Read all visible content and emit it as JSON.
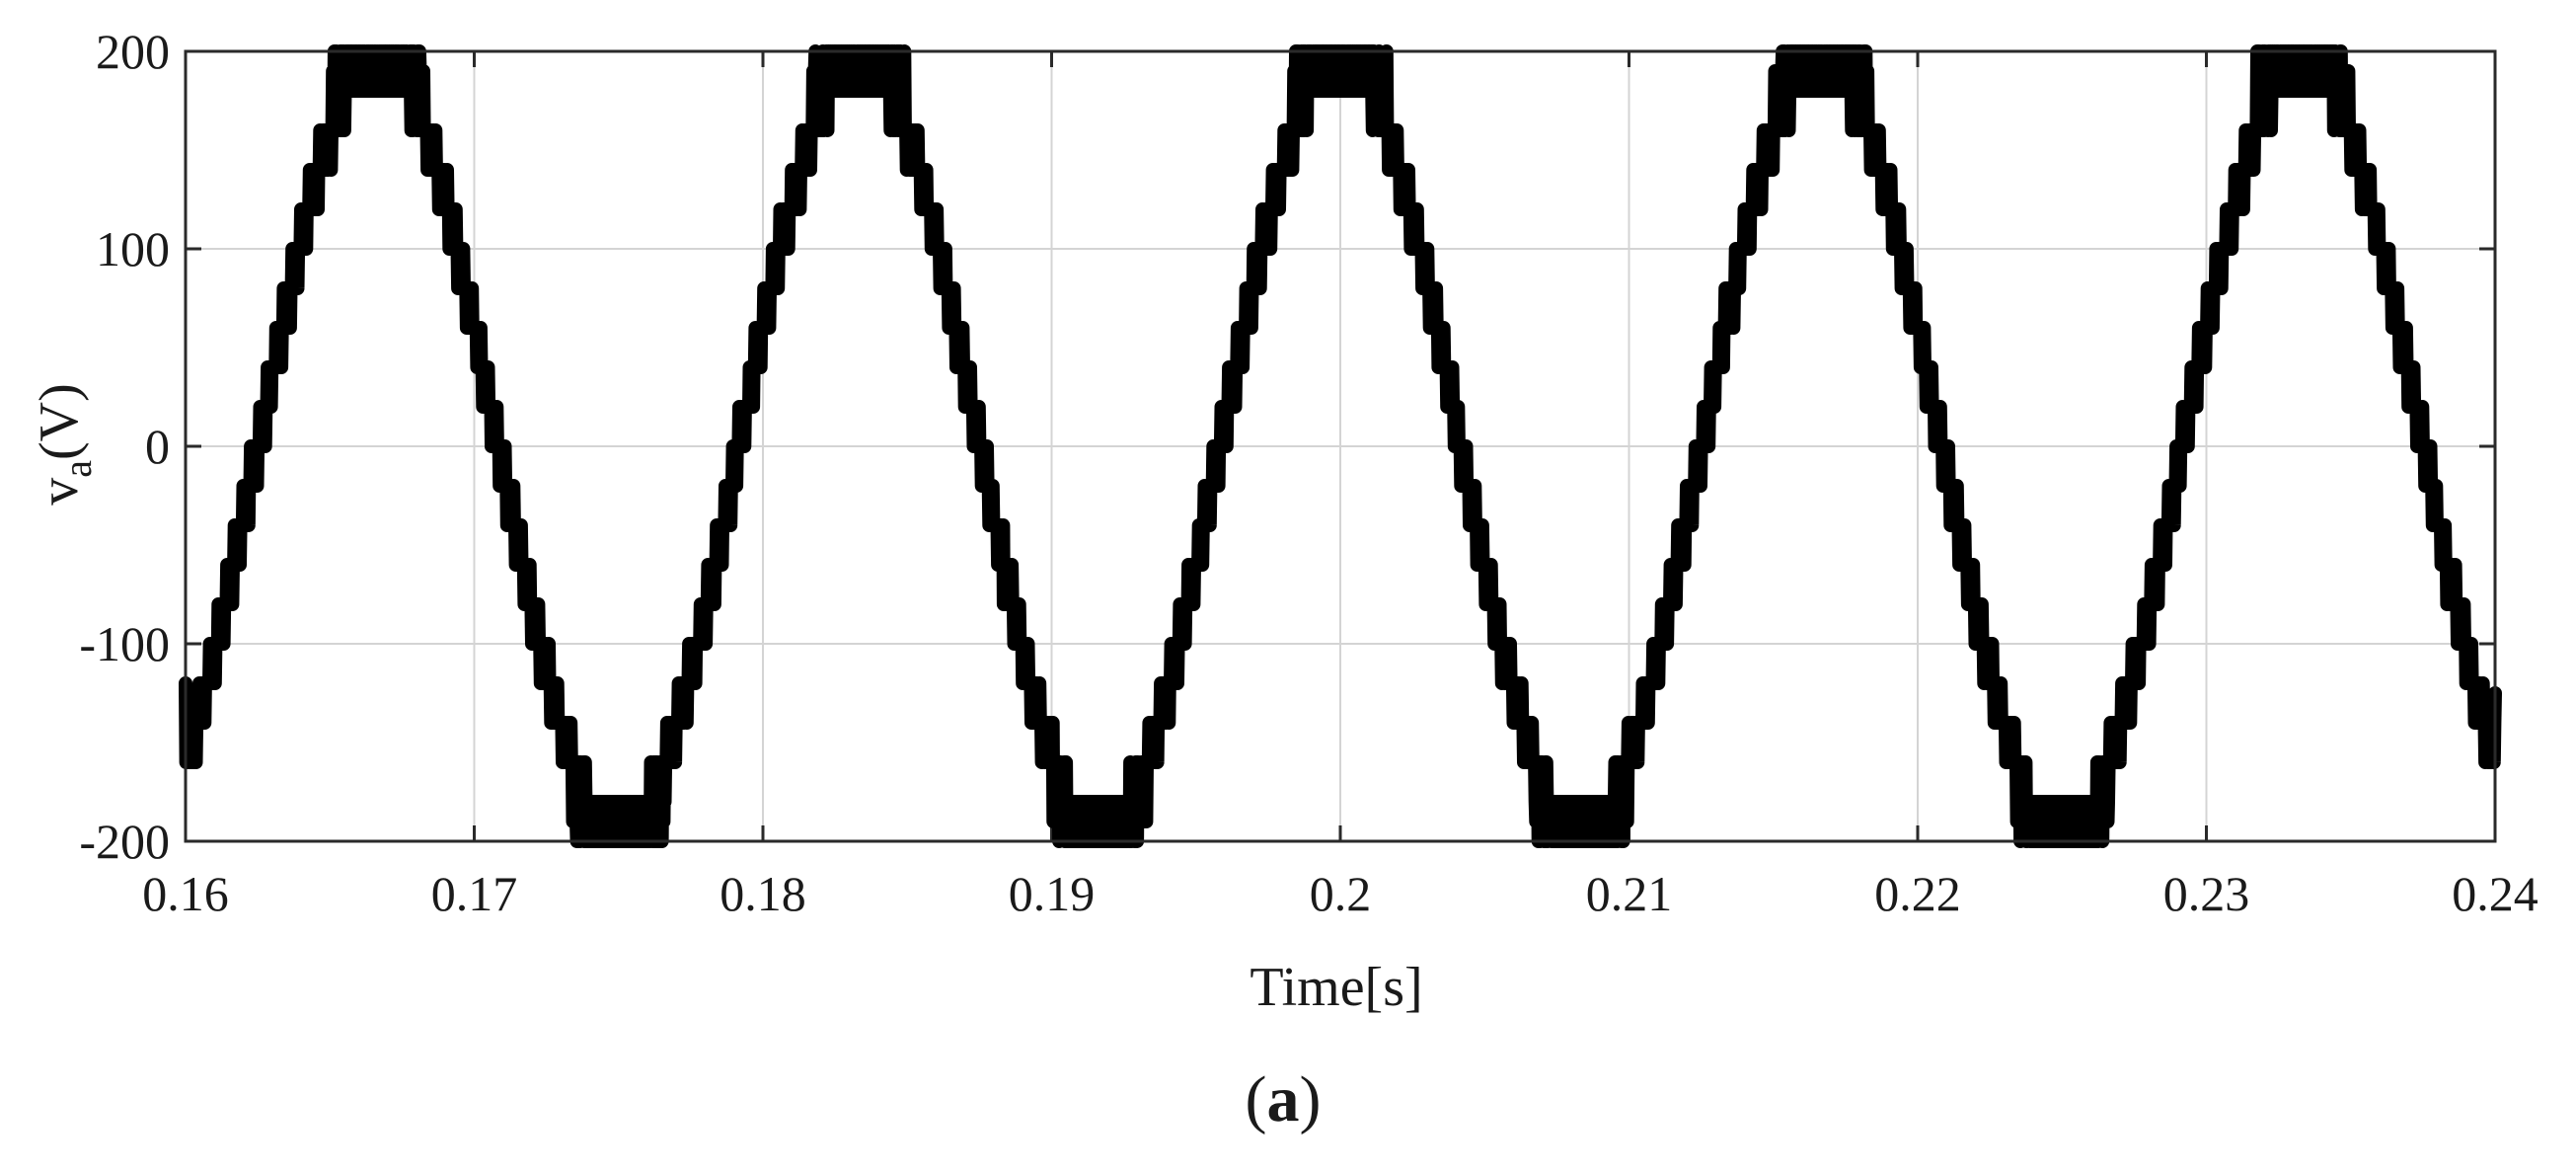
{
  "chart_data": {
    "type": "line",
    "title": "",
    "xlabel": "Time[s]",
    "ylabel": {
      "main": "v",
      "subscript": "a",
      "unit": "(V)"
    },
    "xlim": [
      0.16,
      0.24
    ],
    "ylim": [
      -200,
      200
    ],
    "x_ticks": [
      0.16,
      0.17,
      0.18,
      0.19,
      0.2,
      0.21,
      0.22,
      0.23,
      0.24
    ],
    "x_tick_labels": [
      "0.16",
      "0.17",
      "0.18",
      "0.19",
      "0.2",
      "0.21",
      "0.22",
      "0.23",
      "0.24"
    ],
    "y_ticks": [
      200,
      100,
      0,
      -100,
      -200
    ],
    "y_tick_labels": [
      "200",
      "100",
      "0",
      "-100",
      "-200"
    ],
    "grid": true,
    "line_color": "#000000",
    "series": [
      {
        "waveform": "multilevel staircase sine with switching ripple",
        "frequency_hz": 60,
        "peak_v": 195,
        "phase_offset_s": 0.16667,
        "levels_v": [
          0,
          20,
          40,
          60,
          80,
          100,
          120,
          140,
          160
        ],
        "start_value_v": -120,
        "end_value_v": -125,
        "peak_times_s": [
          0.1667,
          0.1833,
          0.2,
          0.2167,
          0.2333
        ],
        "trough_times_s": [
          0.175,
          0.1917,
          0.2083,
          0.225
        ],
        "peak_values_v": [
          197,
          197,
          195,
          193,
          193
        ],
        "trough_values_v": [
          -197,
          -197,
          -192,
          -192
        ]
      }
    ]
  },
  "caption": {
    "open": "(",
    "letter": "a",
    "close": ")"
  }
}
